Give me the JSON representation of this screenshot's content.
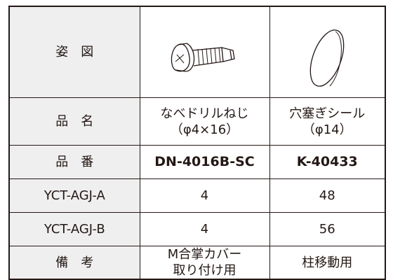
{
  "table": {
    "rows": [
      [
        "姿　図"
      ],
      [
        "品　名",
        "なべドリルねじ\n（φ4×16）",
        "穴塞ぎシール\n（φ14）"
      ],
      [
        "品　番",
        "DN-4016B-SC",
        "K-40433"
      ],
      [
        "YCT-AGJ-A",
        4,
        48
      ],
      [
        "YCT-AGJ-B",
        4,
        56
      ],
      [
        "備　考",
        "M合掌カバー\n取り付け用",
        "柱移動用"
      ]
    ]
  }
}
